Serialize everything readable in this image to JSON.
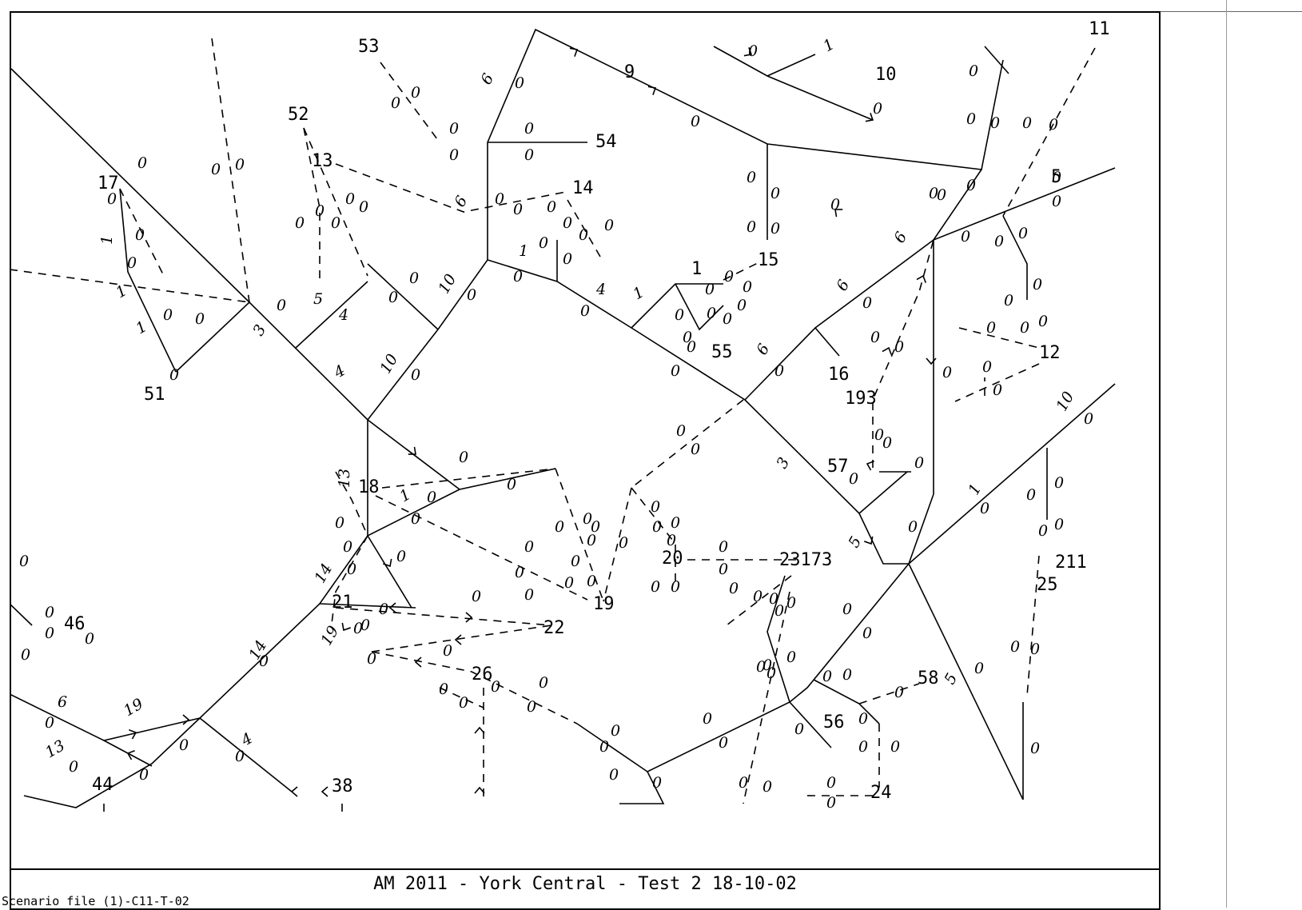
{
  "caption": "AM 2011 - York Central - Test 2  18-10-02",
  "footer_note": "Scenario file (1)-C11-T-02",
  "node_labels": [
    "11",
    "9",
    "10",
    "53",
    "52",
    "54",
    "13",
    "14",
    "17",
    "5",
    "15",
    "1",
    "12",
    "55",
    "16",
    "193",
    "51",
    "57",
    "18",
    "20",
    "23173",
    "19",
    "211",
    "25",
    "21",
    "22",
    "46",
    "26",
    "58",
    "56",
    "24",
    "44",
    "38"
  ],
  "flow_labels": [
    "0",
    "1",
    "3",
    "4",
    "5",
    "6",
    "10",
    "13",
    "14",
    "19"
  ]
}
